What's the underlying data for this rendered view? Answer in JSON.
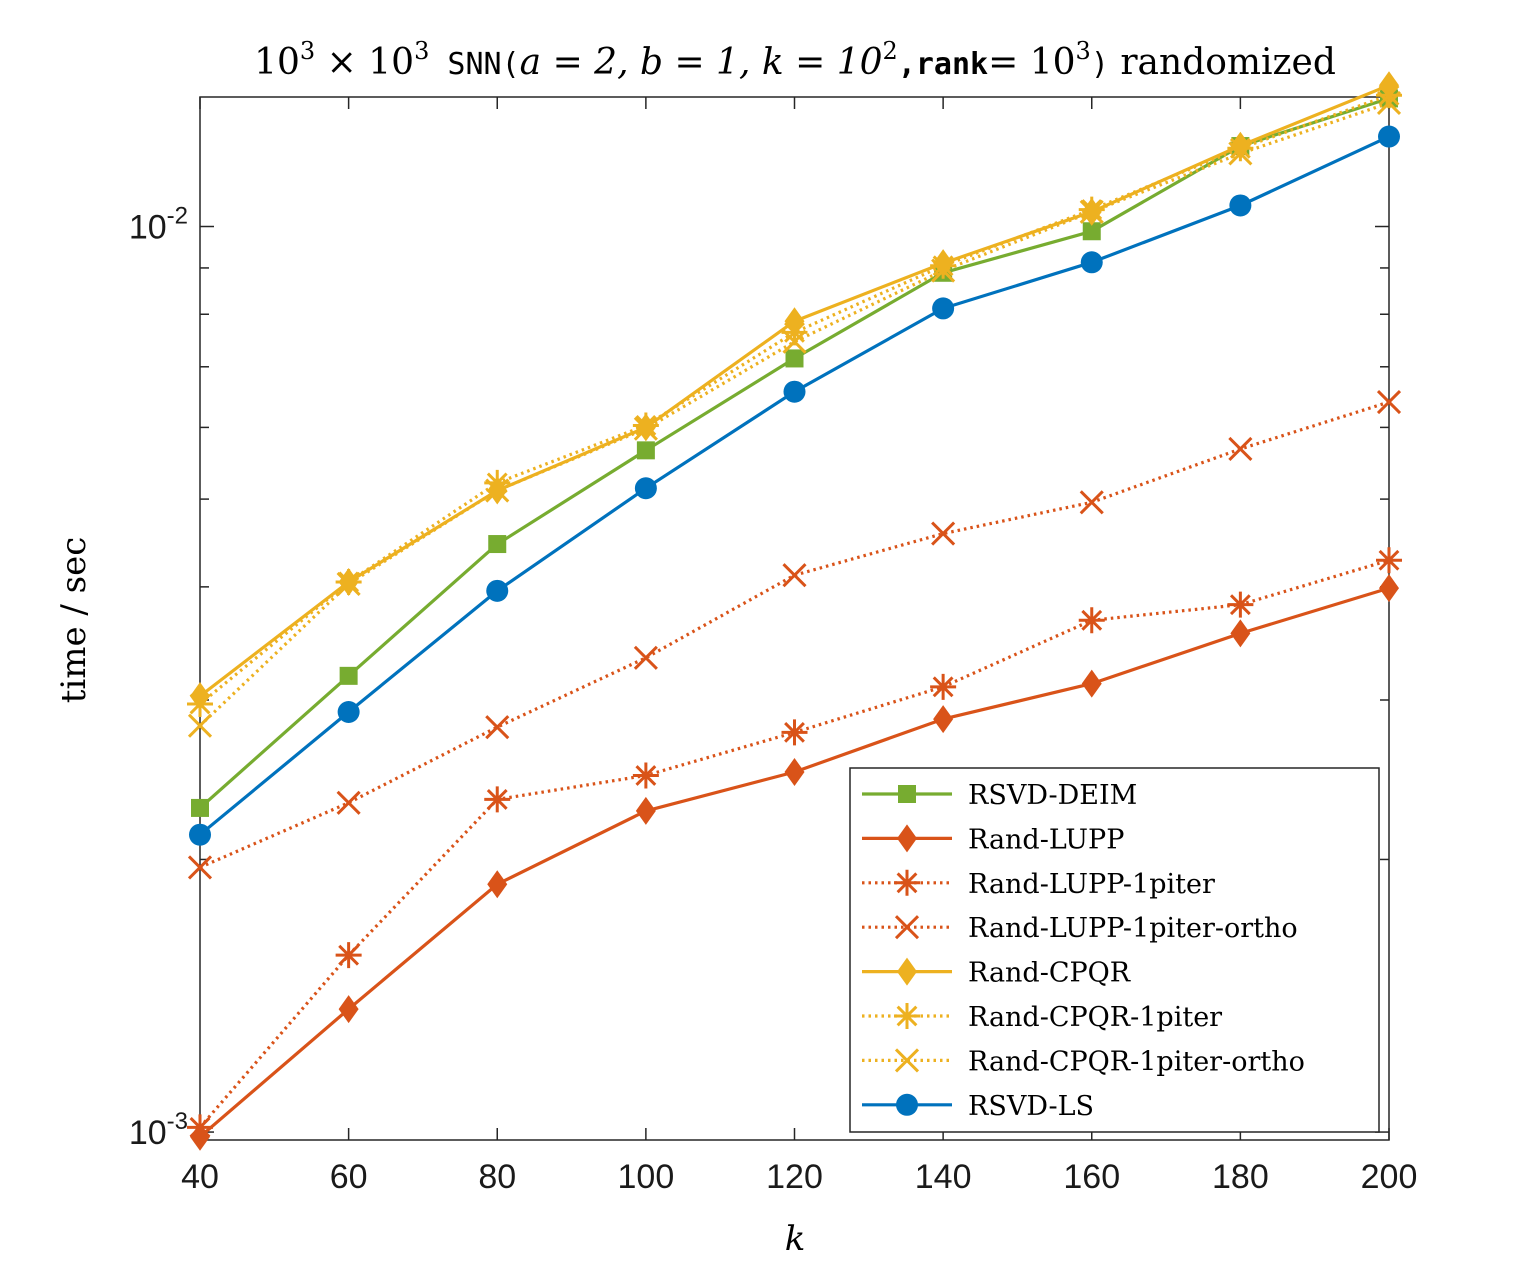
{
  "chart_data": {
    "type": "line",
    "title": {
      "p1": "10",
      "p1_sup": "3",
      "times": " × ",
      "p2": "10",
      "p2_sup": "3",
      "mono1": " SNN(",
      "a": "a = 2, b = 1, k = 10",
      "a_sup": "2",
      "mono2": ",rank",
      "eq": "= 10",
      "eq_sup": "3",
      "mono3": ")",
      "tail": " randomized"
    },
    "xlabel": "k",
    "ylabel": "time / sec",
    "yscale": "log",
    "xlim": [
      40,
      200
    ],
    "ylim": [
      0.00098,
      0.0139
    ],
    "x": [
      40,
      60,
      80,
      100,
      120,
      140,
      160,
      180,
      200
    ],
    "xticks": [
      "40",
      "60",
      "80",
      "100",
      "120",
      "140",
      "160",
      "180",
      "200"
    ],
    "yticks": [
      {
        "base": "10",
        "exp": "-3",
        "value": 0.001
      },
      {
        "base": "10",
        "exp": "-2",
        "value": 0.01
      }
    ],
    "grid": false,
    "legend_position": "bottom-right",
    "series": [
      {
        "name": "RSVD-DEIM",
        "color": "#77ac30",
        "style": "solid",
        "marker": "square",
        "values": [
          0.00228,
          0.00319,
          0.00446,
          0.00566,
          0.00715,
          0.00889,
          0.00988,
          0.01227,
          0.01385
        ]
      },
      {
        "name": "Rand-LUPP",
        "color": "#d95319",
        "style": "solid",
        "marker": "diamond",
        "values": [
          0.000988,
          0.001367,
          0.001878,
          0.002263,
          0.002498,
          0.002858,
          0.003128,
          0.003554,
          0.003987
        ]
      },
      {
        "name": "Rand-LUPP-1piter",
        "color": "#d95319",
        "style": "dotted",
        "marker": "asterisk",
        "values": [
          0.001012,
          0.001568,
          0.00233,
          0.002476,
          0.002763,
          0.003102,
          0.003674,
          0.003823,
          0.00428
        ]
      },
      {
        "name": "Rand-LUPP-1piter-ortho",
        "color": "#d95319",
        "style": "dotted",
        "marker": "x",
        "values": [
          0.00196,
          0.00231,
          0.0028,
          0.00334,
          0.00412,
          0.00458,
          0.00496,
          0.00568,
          0.0064
        ]
      },
      {
        "name": "Rand-CPQR",
        "color": "#edb120",
        "style": "solid",
        "marker": "diamond",
        "values": [
          0.00303,
          0.00405,
          0.00511,
          0.006,
          0.00786,
          0.00911,
          0.01038,
          0.01228,
          0.01432
        ]
      },
      {
        "name": "Rand-CPQR-1piter",
        "color": "#edb120",
        "style": "dotted",
        "marker": "asterisk",
        "values": [
          0.00297,
          0.00405,
          0.00521,
          0.00603,
          0.00764,
          0.00905,
          0.01044,
          0.0122,
          0.01396
        ]
      },
      {
        "name": "Rand-CPQR-1piter-ortho",
        "color": "#edb120",
        "style": "dotted",
        "marker": "x",
        "values": [
          0.00281,
          0.00403,
          0.00511,
          0.00598,
          0.00746,
          0.00894,
          0.01038,
          0.01204,
          0.01369
        ]
      },
      {
        "name": "RSVD-LS",
        "color": "#0072bd",
        "style": "solid",
        "marker": "circle",
        "values": [
          0.00213,
          0.00291,
          0.00396,
          0.00514,
          0.00657,
          0.00812,
          0.00913,
          0.01055,
          0.01257
        ]
      }
    ]
  }
}
